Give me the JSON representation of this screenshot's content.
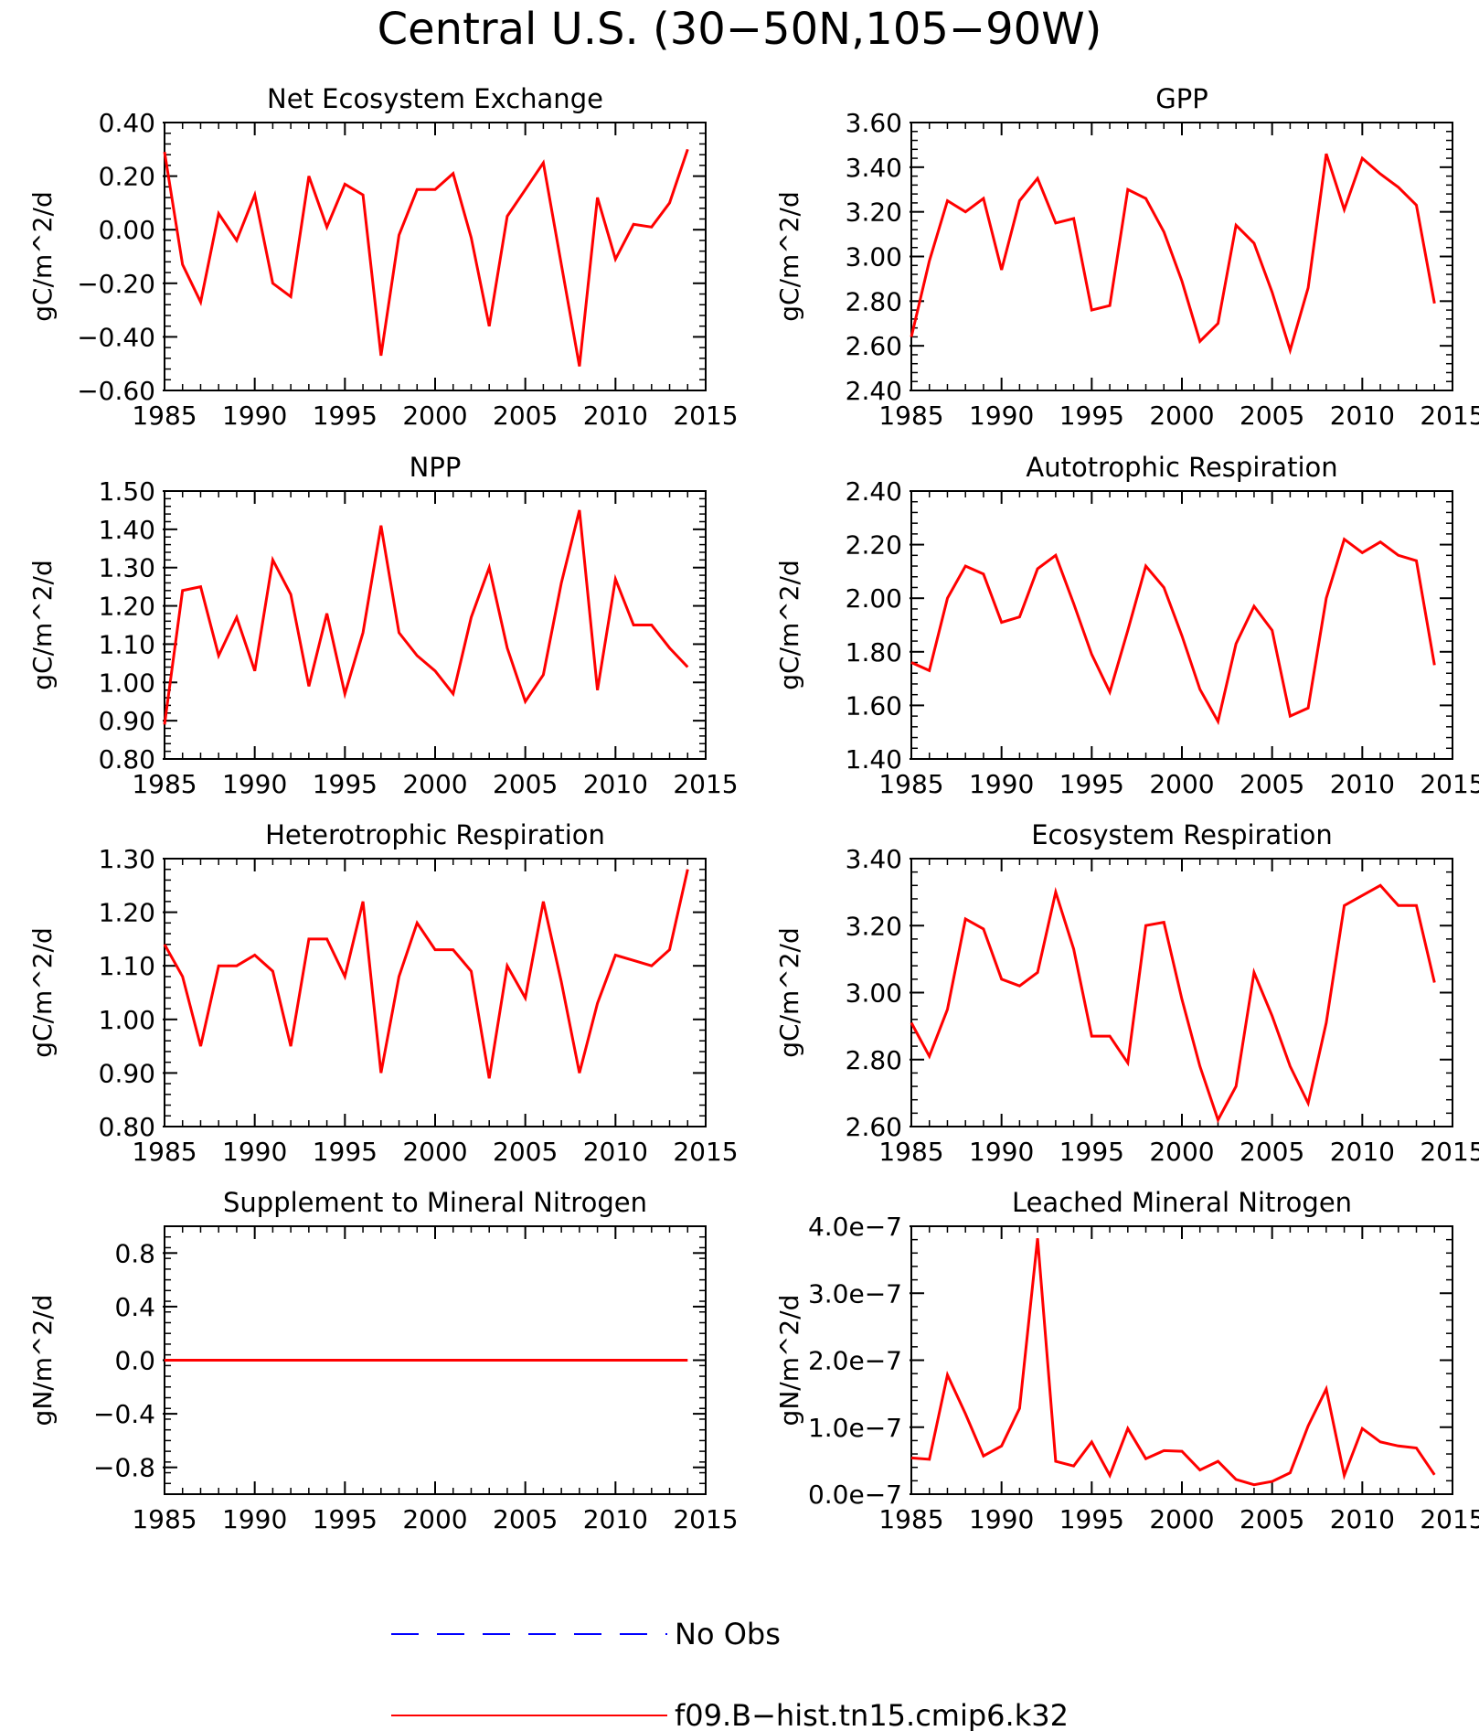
{
  "figure": {
    "title": "Central U.S. (30−50N,105−90W)",
    "legend": [
      {
        "label": "No Obs",
        "color": "#0000ff",
        "style": "dashed"
      },
      {
        "label": "f09.B−hist.tn15.cmip6.k32",
        "color": "#ff0000",
        "style": "solid"
      }
    ]
  },
  "chart_data": [
    {
      "type": "line",
      "title": "Net Ecosystem Exchange",
      "ylabel": "gC/m^2/d",
      "xlim": [
        1985,
        2015
      ],
      "ylim": [
        -0.6,
        0.4
      ],
      "xticks": [
        1985,
        1990,
        1995,
        2000,
        2005,
        2010,
        2015
      ],
      "yticks": [
        -0.6,
        -0.4,
        -0.2,
        0.0,
        0.2,
        0.4
      ],
      "yticklabels": [
        "−0.60",
        "−0.40",
        "−0.20",
        "0.00",
        "0.20",
        "0.40"
      ],
      "series": [
        {
          "color": "#ff0000",
          "x": [
            1985,
            1986,
            1987,
            1988,
            1989,
            1990,
            1991,
            1992,
            1993,
            1994,
            1995,
            1996,
            1997,
            1998,
            1999,
            2000,
            2001,
            2002,
            2003,
            2004,
            2005,
            2006,
            2007,
            2008,
            2009,
            2010,
            2011,
            2012,
            2013,
            2014
          ],
          "y": [
            0.29,
            -0.13,
            -0.27,
            0.06,
            -0.04,
            0.13,
            -0.2,
            -0.25,
            0.2,
            0.01,
            0.17,
            0.13,
            -0.47,
            -0.02,
            0.15,
            0.15,
            0.21,
            -0.03,
            -0.36,
            0.05,
            0.15,
            0.25,
            -0.13,
            -0.51,
            0.12,
            -0.11,
            0.02,
            0.01,
            0.1,
            0.3
          ]
        }
      ]
    },
    {
      "type": "line",
      "title": "GPP",
      "ylabel": "gC/m^2/d",
      "xlim": [
        1985,
        2015
      ],
      "ylim": [
        2.4,
        3.6
      ],
      "xticks": [
        1985,
        1990,
        1995,
        2000,
        2005,
        2010,
        2015
      ],
      "yticks": [
        2.4,
        2.6,
        2.8,
        3.0,
        3.2,
        3.4,
        3.6
      ],
      "yticklabels": [
        "2.40",
        "2.60",
        "2.80",
        "3.00",
        "3.20",
        "3.40",
        "3.60"
      ],
      "series": [
        {
          "color": "#ff0000",
          "x": [
            1985,
            1986,
            1987,
            1988,
            1989,
            1990,
            1991,
            1992,
            1993,
            1994,
            1995,
            1996,
            1997,
            1998,
            1999,
            2000,
            2001,
            2002,
            2003,
            2004,
            2005,
            2006,
            2007,
            2008,
            2009,
            2010,
            2011,
            2012,
            2013,
            2014
          ],
          "y": [
            2.64,
            2.98,
            3.25,
            3.2,
            3.26,
            2.94,
            3.25,
            3.35,
            3.15,
            3.17,
            2.76,
            2.78,
            3.3,
            3.26,
            3.11,
            2.89,
            2.62,
            2.7,
            3.14,
            3.06,
            2.84,
            2.58,
            2.86,
            3.46,
            3.21,
            3.44,
            3.37,
            3.31,
            3.23,
            2.79
          ]
        }
      ]
    },
    {
      "type": "line",
      "title": "NPP",
      "ylabel": "gC/m^2/d",
      "xlim": [
        1985,
        2015
      ],
      "ylim": [
        0.8,
        1.5
      ],
      "xticks": [
        1985,
        1990,
        1995,
        2000,
        2005,
        2010,
        2015
      ],
      "yticks": [
        0.8,
        0.9,
        1.0,
        1.1,
        1.2,
        1.3,
        1.4,
        1.5
      ],
      "yticklabels": [
        "0.80",
        "0.90",
        "1.00",
        "1.10",
        "1.20",
        "1.30",
        "1.40",
        "1.50"
      ],
      "series": [
        {
          "color": "#ff0000",
          "x": [
            1985,
            1986,
            1987,
            1988,
            1989,
            1990,
            1991,
            1992,
            1993,
            1994,
            1995,
            1996,
            1997,
            1998,
            1999,
            2000,
            2001,
            2002,
            2003,
            2004,
            2005,
            2006,
            2007,
            2008,
            2009,
            2010,
            2011,
            2012,
            2013,
            2014
          ],
          "y": [
            0.89,
            1.24,
            1.25,
            1.07,
            1.17,
            1.03,
            1.32,
            1.23,
            0.99,
            1.18,
            0.97,
            1.13,
            1.41,
            1.13,
            1.07,
            1.03,
            0.97,
            1.17,
            1.3,
            1.09,
            0.95,
            1.02,
            1.26,
            1.45,
            0.98,
            1.27,
            1.15,
            1.15,
            1.09,
            1.04
          ]
        }
      ]
    },
    {
      "type": "line",
      "title": "Autotrophic Respiration",
      "ylabel": "gC/m^2/d",
      "xlim": [
        1985,
        2015
      ],
      "ylim": [
        1.4,
        2.4
      ],
      "xticks": [
        1985,
        1990,
        1995,
        2000,
        2005,
        2010,
        2015
      ],
      "yticks": [
        1.4,
        1.6,
        1.8,
        2.0,
        2.2,
        2.4
      ],
      "yticklabels": [
        "1.40",
        "1.60",
        "1.80",
        "2.00",
        "2.20",
        "2.40"
      ],
      "series": [
        {
          "color": "#ff0000",
          "x": [
            1985,
            1986,
            1987,
            1988,
            1989,
            1990,
            1991,
            1992,
            1993,
            1994,
            1995,
            1996,
            1997,
            1998,
            1999,
            2000,
            2001,
            2002,
            2003,
            2004,
            2005,
            2006,
            2007,
            2008,
            2009,
            2010,
            2011,
            2012,
            2013,
            2014
          ],
          "y": [
            1.76,
            1.73,
            2.0,
            2.12,
            2.09,
            1.91,
            1.93,
            2.11,
            2.16,
            1.98,
            1.79,
            1.65,
            1.88,
            2.12,
            2.04,
            1.86,
            1.66,
            1.54,
            1.83,
            1.97,
            1.88,
            1.56,
            1.59,
            2.0,
            2.22,
            2.17,
            2.21,
            2.16,
            2.14,
            1.75
          ]
        }
      ]
    },
    {
      "type": "line",
      "title": "Heterotrophic Respiration",
      "ylabel": "gC/m^2/d",
      "xlim": [
        1985,
        2015
      ],
      "ylim": [
        0.8,
        1.3
      ],
      "xticks": [
        1985,
        1990,
        1995,
        2000,
        2005,
        2010,
        2015
      ],
      "yticks": [
        0.8,
        0.9,
        1.0,
        1.1,
        1.2,
        1.3
      ],
      "yticklabels": [
        "0.80",
        "0.90",
        "1.00",
        "1.10",
        "1.20",
        "1.30"
      ],
      "series": [
        {
          "color": "#ff0000",
          "x": [
            1985,
            1986,
            1987,
            1988,
            1989,
            1990,
            1991,
            1992,
            1993,
            1994,
            1995,
            1996,
            1997,
            1998,
            1999,
            2000,
            2001,
            2002,
            2003,
            2004,
            2005,
            2006,
            2007,
            2008,
            2009,
            2010,
            2011,
            2012,
            2013,
            2014
          ],
          "y": [
            1.14,
            1.08,
            0.95,
            1.1,
            1.1,
            1.12,
            1.09,
            0.95,
            1.15,
            1.15,
            1.08,
            1.22,
            0.9,
            1.08,
            1.18,
            1.13,
            1.13,
            1.09,
            0.89,
            1.1,
            1.04,
            1.22,
            1.07,
            0.9,
            1.03,
            1.12,
            1.11,
            1.1,
            1.13,
            1.28
          ]
        }
      ]
    },
    {
      "type": "line",
      "title": "Ecosystem Respiration",
      "ylabel": "gC/m^2/d",
      "xlim": [
        1985,
        2015
      ],
      "ylim": [
        2.6,
        3.4
      ],
      "xticks": [
        1985,
        1990,
        1995,
        2000,
        2005,
        2010,
        2015
      ],
      "yticks": [
        2.6,
        2.8,
        3.0,
        3.2,
        3.4
      ],
      "yticklabels": [
        "2.60",
        "2.80",
        "3.00",
        "3.20",
        "3.40"
      ],
      "series": [
        {
          "color": "#ff0000",
          "x": [
            1985,
            1986,
            1987,
            1988,
            1989,
            1990,
            1991,
            1992,
            1993,
            1994,
            1995,
            1996,
            1997,
            1998,
            1999,
            2000,
            2001,
            2002,
            2003,
            2004,
            2005,
            2006,
            2007,
            2008,
            2009,
            2010,
            2011,
            2012,
            2013,
            2014
          ],
          "y": [
            2.91,
            2.81,
            2.95,
            3.22,
            3.19,
            3.04,
            3.02,
            3.06,
            3.3,
            3.13,
            2.87,
            2.87,
            2.79,
            3.2,
            3.21,
            2.98,
            2.78,
            2.62,
            2.72,
            3.06,
            2.93,
            2.78,
            2.67,
            2.91,
            3.26,
            3.29,
            3.32,
            3.26,
            3.26,
            3.03
          ]
        }
      ]
    },
    {
      "type": "line",
      "title": "Supplement to Mineral Nitrogen",
      "ylabel": "gN/m^2/d",
      "xlim": [
        1985,
        2015
      ],
      "ylim": [
        -1.0,
        1.0
      ],
      "xticks": [
        1985,
        1990,
        1995,
        2000,
        2005,
        2010,
        2015
      ],
      "yticks": [
        -0.8,
        -0.4,
        0.0,
        0.4,
        0.8
      ],
      "yticklabels": [
        "−0.8",
        "−0.4",
        "0.0",
        "0.4",
        "0.8"
      ],
      "series": [
        {
          "color": "#ff0000",
          "x": [
            1985,
            1986,
            1987,
            1988,
            1989,
            1990,
            1991,
            1992,
            1993,
            1994,
            1995,
            1996,
            1997,
            1998,
            1999,
            2000,
            2001,
            2002,
            2003,
            2004,
            2005,
            2006,
            2007,
            2008,
            2009,
            2010,
            2011,
            2012,
            2013,
            2014
          ],
          "y": [
            0,
            0,
            0,
            0,
            0,
            0,
            0,
            0,
            0,
            0,
            0,
            0,
            0,
            0,
            0,
            0,
            0,
            0,
            0,
            0,
            0,
            0,
            0,
            0,
            0,
            0,
            0,
            0,
            0,
            0
          ]
        }
      ]
    },
    {
      "type": "line",
      "title": "Leached Mineral Nitrogen",
      "ylabel": "gN/m^2/d",
      "xlim": [
        1985,
        2015
      ],
      "ylim": [
        0,
        4e-07
      ],
      "xticks": [
        1985,
        1990,
        1995,
        2000,
        2005,
        2010,
        2015
      ],
      "yticks": [
        0,
        1e-07,
        2e-07,
        3e-07,
        4e-07
      ],
      "yticklabels": [
        "0.0e−7",
        "1.0e−7",
        "2.0e−7",
        "3.0e−7",
        "4.0e−7"
      ],
      "series": [
        {
          "color": "#ff0000",
          "x": [
            1985,
            1986,
            1987,
            1988,
            1989,
            1990,
            1991,
            1992,
            1993,
            1994,
            1995,
            1996,
            1997,
            1998,
            1999,
            2000,
            2001,
            2002,
            2003,
            2004,
            2005,
            2006,
            2007,
            2008,
            2009,
            2010,
            2011,
            2012,
            2013,
            2014
          ],
          "y": [
            5.4e-08,
            5.2e-08,
            1.78e-07,
            1.2e-07,
            5.7e-08,
            7.2e-08,
            1.28e-07,
            3.82e-07,
            4.9e-08,
            4.2e-08,
            7.8e-08,
            2.8e-08,
            9.8e-08,
            5.3e-08,
            6.5e-08,
            6.4e-08,
            3.6e-08,
            4.9e-08,
            2.2e-08,
            1.4e-08,
            1.9e-08,
            3.2e-08,
            1.02e-07,
            1.57e-07,
            2.8e-08,
            9.8e-08,
            7.8e-08,
            7.2e-08,
            6.9e-08,
            2.9e-08
          ]
        }
      ]
    }
  ]
}
